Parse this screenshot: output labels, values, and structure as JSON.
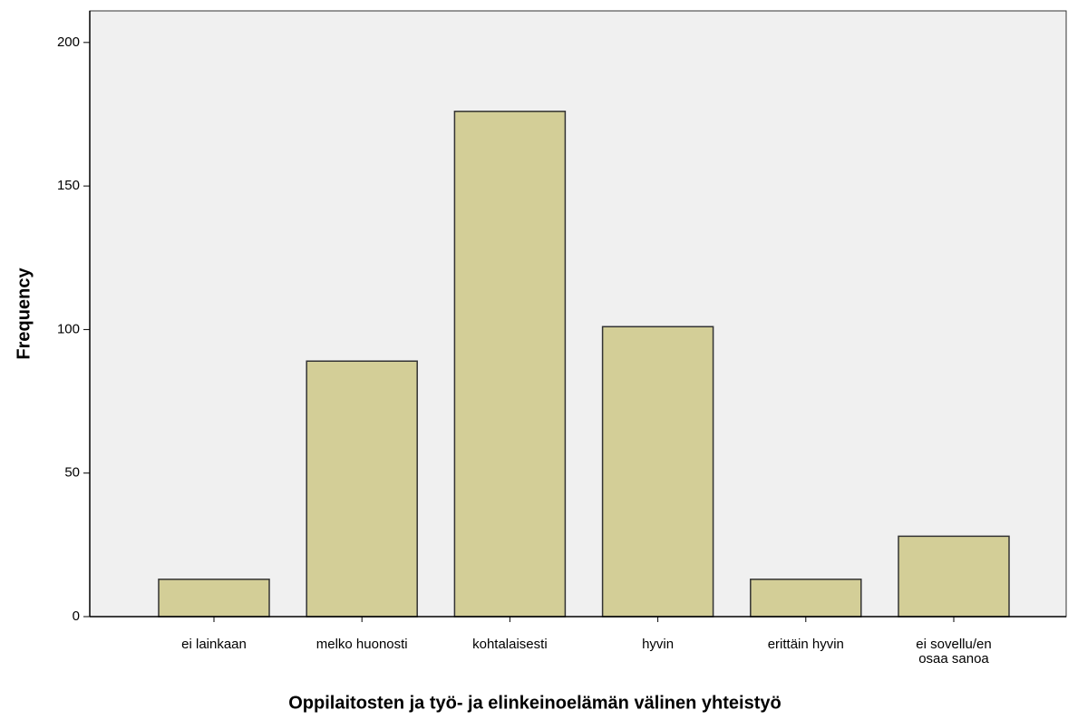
{
  "chart_data": {
    "type": "bar",
    "x_label": "Oppilaitosten ja työ- ja elinkeinoelämän välinen yhteistyö",
    "y_label": "Frequency",
    "categories": [
      "ei lainkaan",
      "melko huonosti",
      "kohtalaisesti",
      "hyvin",
      "erittäin hyvin",
      "ei sovellu/en osaa sanoa"
    ],
    "values": [
      13,
      89,
      176,
      101,
      13,
      28
    ],
    "color": "#d3ce97",
    "ylim": [
      0,
      211
    ],
    "yticks": [
      0,
      50,
      100,
      150,
      200
    ],
    "grid": false
  }
}
